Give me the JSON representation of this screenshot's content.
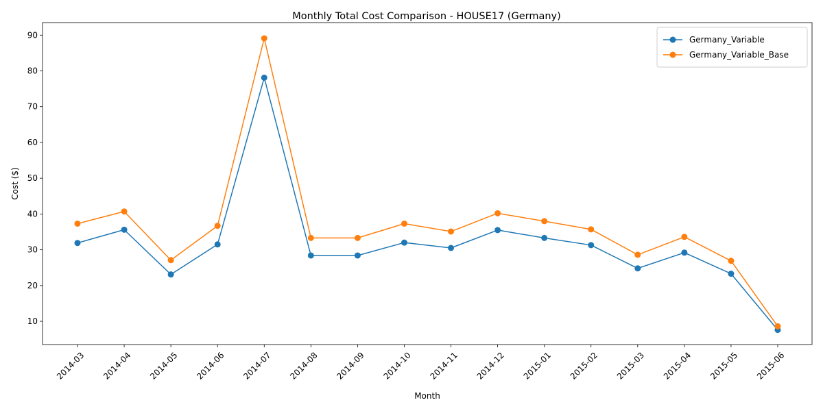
{
  "chart_data": {
    "type": "line",
    "title": "Monthly Total Cost Comparison - HOUSE17 (Germany)",
    "xlabel": "Month",
    "ylabel": "Cost ($)",
    "categories": [
      "2014-03",
      "2014-04",
      "2014-05",
      "2014-06",
      "2014-07",
      "2014-08",
      "2014-09",
      "2014-10",
      "2014-11",
      "2014-12",
      "2015-01",
      "2015-02",
      "2015-03",
      "2015-04",
      "2015-05",
      "2015-06"
    ],
    "ylim": [
      3.5,
      93.5
    ],
    "yticks": [
      10,
      20,
      30,
      40,
      50,
      60,
      70,
      80,
      90
    ],
    "grid": false,
    "legend_position": "top-right",
    "series": [
      {
        "name": "Germany_Variable",
        "color": "#1f77b4",
        "marker": "circle",
        "values": [
          31.9,
          35.6,
          23.1,
          31.5,
          78.1,
          28.4,
          28.4,
          32.0,
          30.5,
          35.5,
          33.3,
          31.3,
          24.8,
          29.2,
          23.3,
          7.6
        ]
      },
      {
        "name": "Germany_Variable_Base",
        "color": "#ff7f0e",
        "marker": "circle",
        "values": [
          37.3,
          40.7,
          27.1,
          36.7,
          89.1,
          33.3,
          33.3,
          37.3,
          35.1,
          40.2,
          38.0,
          35.7,
          28.6,
          33.6,
          26.9,
          8.6
        ]
      }
    ]
  }
}
